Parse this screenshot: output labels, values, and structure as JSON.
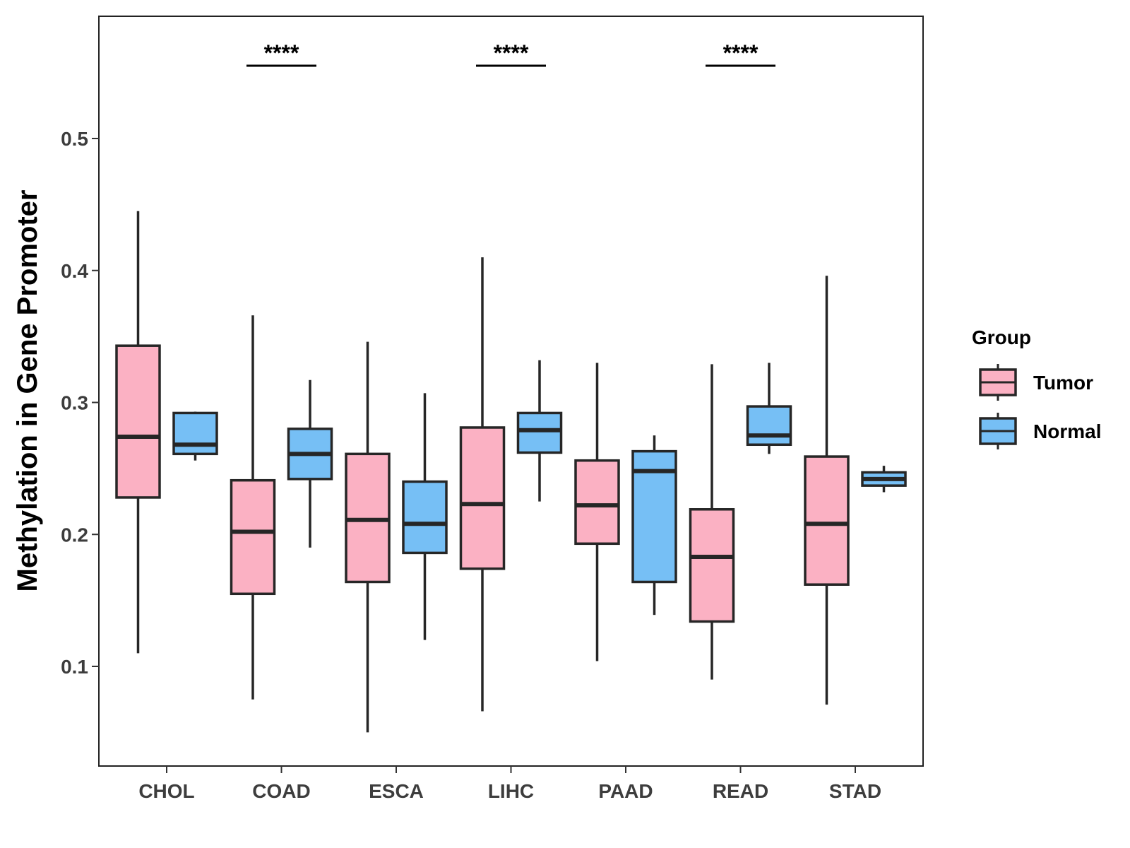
{
  "chart_data": {
    "type": "boxplot",
    "title": "",
    "xlabel": "",
    "ylabel": "Methylation in Gene Promoter",
    "ylim": [
      0.02,
      0.58
    ],
    "yticks": [
      0.1,
      0.2,
      0.3,
      0.4,
      0.5
    ],
    "ytick_labels": [
      "0.1",
      "0.2",
      "0.3",
      "0.4",
      "0.5"
    ],
    "categories": [
      "CHOL",
      "COAD",
      "ESCA",
      "LIHC",
      "PAAD",
      "READ",
      "STAD"
    ],
    "legend": {
      "title": "Group",
      "position": "right",
      "entries": [
        {
          "name": "Tumor",
          "color": "#fbb1c3"
        },
        {
          "name": "Normal",
          "color": "#76bff5"
        }
      ]
    },
    "series": [
      {
        "name": "Tumor",
        "color": "#fbb1c3",
        "boxes": [
          {
            "min": 0.11,
            "q1": 0.228,
            "median": 0.274,
            "q3": 0.343,
            "max": 0.445
          },
          {
            "min": 0.075,
            "q1": 0.155,
            "median": 0.202,
            "q3": 0.241,
            "max": 0.366
          },
          {
            "min": 0.05,
            "q1": 0.164,
            "median": 0.211,
            "q3": 0.261,
            "max": 0.346
          },
          {
            "min": 0.066,
            "q1": 0.174,
            "median": 0.223,
            "q3": 0.281,
            "max": 0.41
          },
          {
            "min": 0.104,
            "q1": 0.193,
            "median": 0.222,
            "q3": 0.256,
            "max": 0.33
          },
          {
            "min": 0.09,
            "q1": 0.134,
            "median": 0.183,
            "q3": 0.219,
            "max": 0.329
          },
          {
            "min": 0.071,
            "q1": 0.162,
            "median": 0.208,
            "q3": 0.259,
            "max": 0.396
          }
        ]
      },
      {
        "name": "Normal",
        "color": "#76bff5",
        "boxes": [
          {
            "min": 0.256,
            "q1": 0.261,
            "median": 0.268,
            "q3": 0.292,
            "max": 0.293
          },
          {
            "min": 0.19,
            "q1": 0.242,
            "median": 0.261,
            "q3": 0.28,
            "max": 0.317
          },
          {
            "min": 0.12,
            "q1": 0.186,
            "median": 0.208,
            "q3": 0.24,
            "max": 0.307
          },
          {
            "min": 0.225,
            "q1": 0.262,
            "median": 0.279,
            "q3": 0.292,
            "max": 0.332
          },
          {
            "min": 0.139,
            "q1": 0.164,
            "median": 0.248,
            "q3": 0.263,
            "max": 0.275
          },
          {
            "min": 0.261,
            "q1": 0.268,
            "median": 0.275,
            "q3": 0.297,
            "max": 0.33
          },
          {
            "min": 0.232,
            "q1": 0.237,
            "median": 0.242,
            "q3": 0.247,
            "max": 0.252
          }
        ]
      }
    ],
    "annotations": [
      {
        "category": "COAD",
        "text": "****"
      },
      {
        "category": "LIHC",
        "text": "****"
      },
      {
        "category": "READ",
        "text": "****"
      }
    ]
  }
}
